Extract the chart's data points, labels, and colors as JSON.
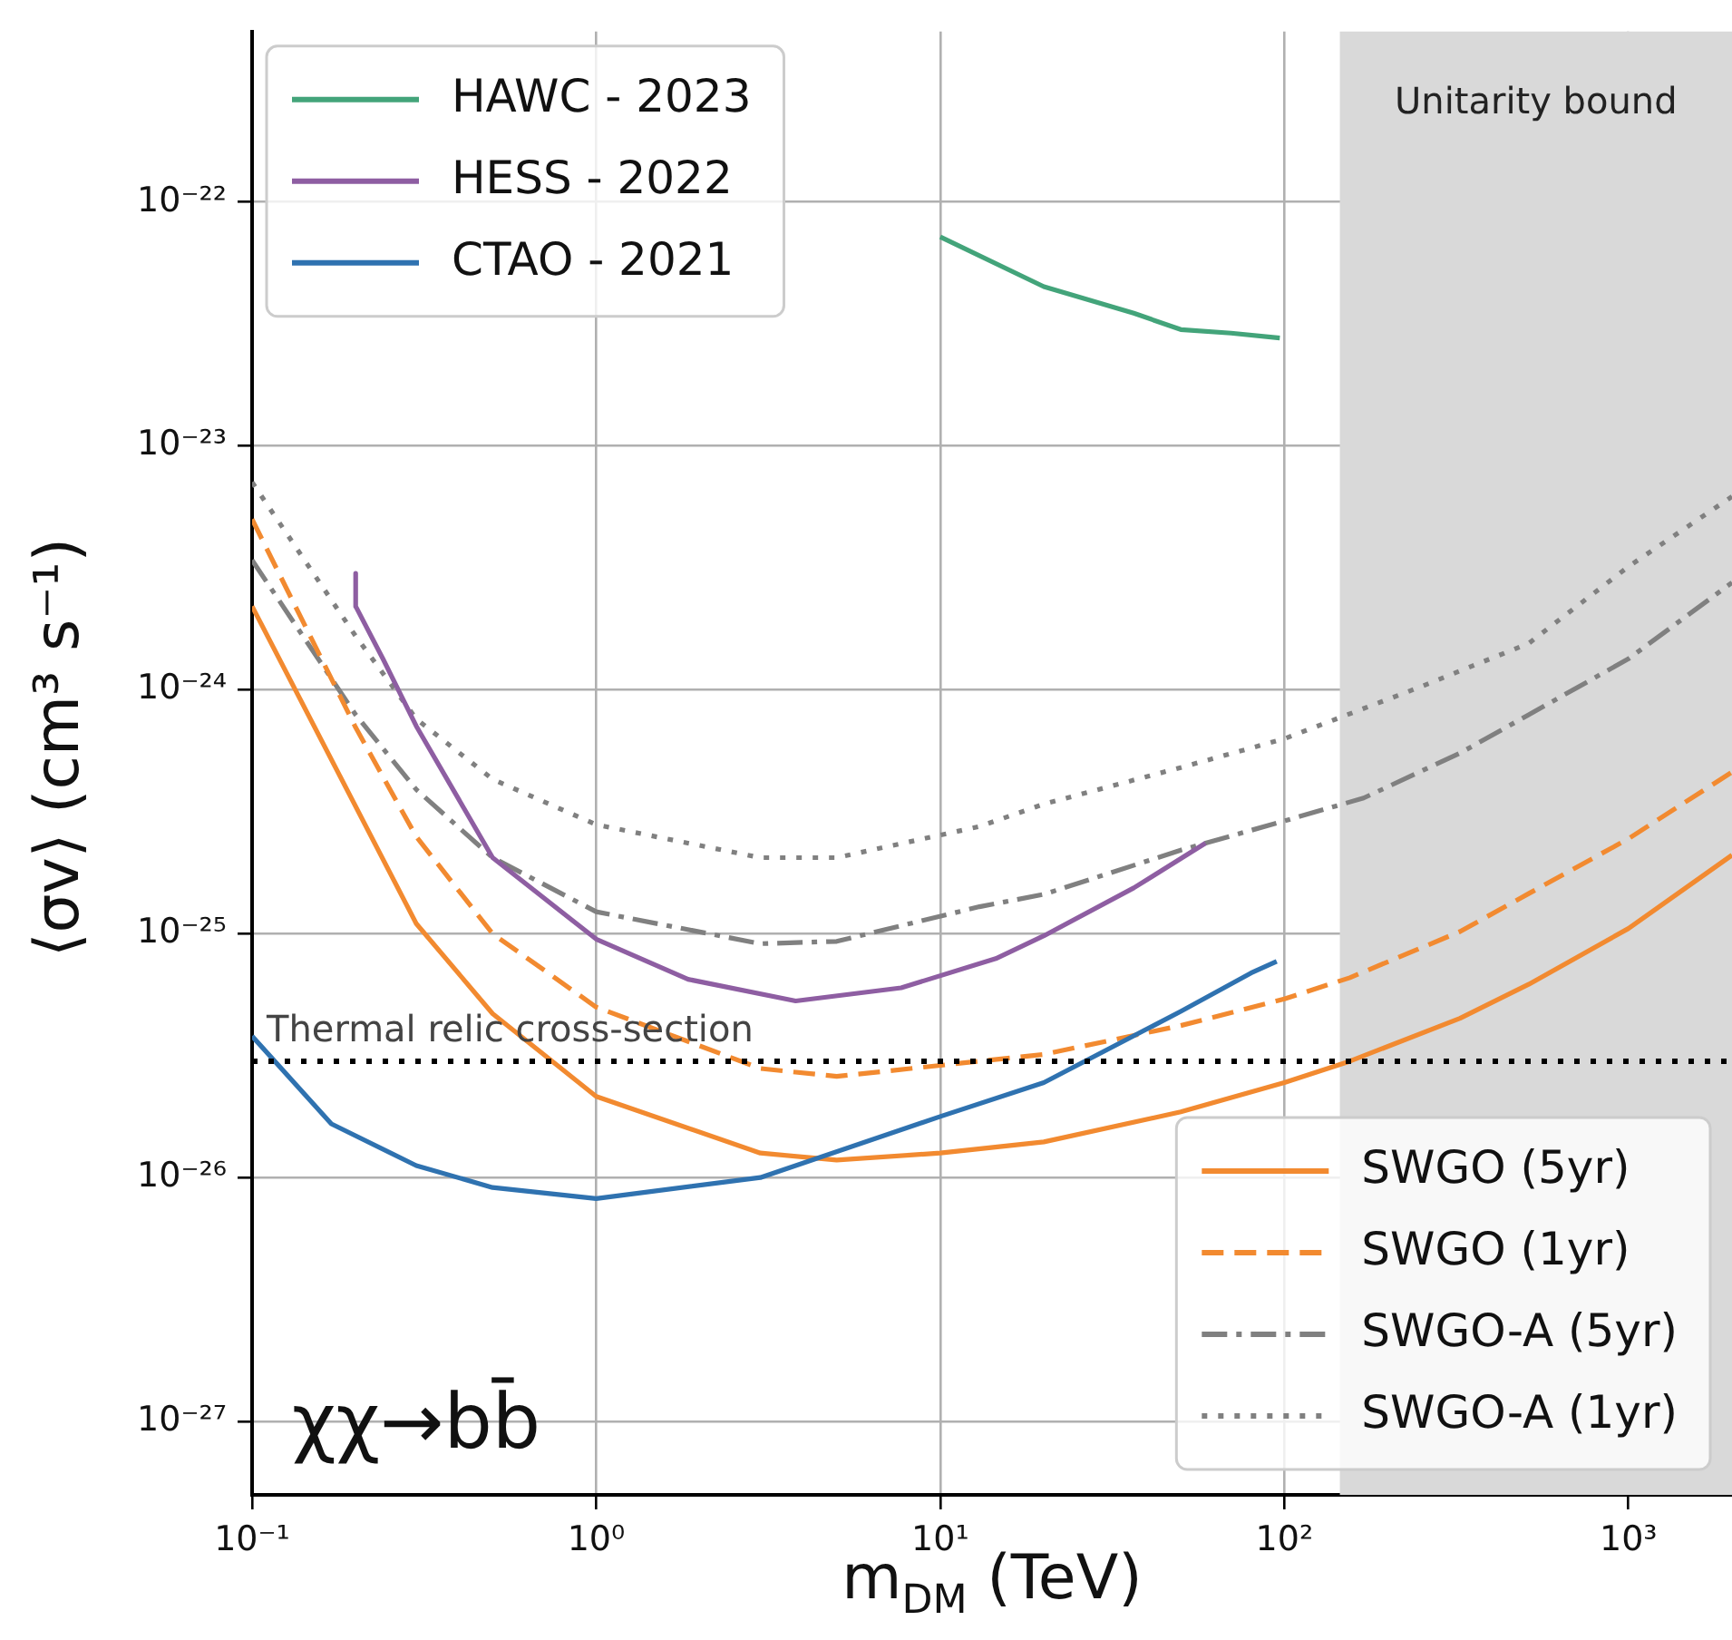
{
  "chart_data": {
    "type": "line",
    "xlabel": "m$_{DM}$ (TeV)",
    "ylabel": "⟨σv⟩ (cm³ s⁻¹)",
    "log": "xy",
    "grid": true,
    "legend": "top left",
    "xlim": [
      0.1,
      2000
    ],
    "xticks": [
      {
        "value": 0.1,
        "label": "10⁻¹"
      },
      {
        "value": 1,
        "label": "10⁰"
      },
      {
        "value": 10,
        "label": "10¹"
      },
      {
        "value": 100,
        "label": "10²"
      },
      {
        "value": 1000,
        "label": "10³"
      }
    ],
    "ylim": [
      5e-28,
      5e-22
    ],
    "yticks": [
      {
        "value": 1e-27,
        "label": "10⁻²⁷"
      },
      {
        "value": 1e-26,
        "label": "10⁻²⁶"
      },
      {
        "value": 1e-25,
        "label": "10⁻²⁵"
      },
      {
        "value": 1e-24,
        "label": "10⁻²⁴"
      },
      {
        "value": 1e-23,
        "label": "10⁻²³"
      },
      {
        "value": 1e-22,
        "label": "10⁻²²"
      }
    ],
    "series": [
      {
        "name": "HAWC - 2023",
        "color": "#43a47a",
        "line_style": "solid",
        "x": [
          10,
          20,
          36.5,
          50,
          70,
          97
        ],
        "values": [
          7.2e-23,
          4.5e-23,
          3.5e-23,
          3e-23,
          2.9e-23,
          2.77e-23
        ]
      },
      {
        "name": "HESS - 2022",
        "color": "#8e5ea2",
        "line_style": "solid",
        "x": [
          0.2,
          0.2,
          0.24,
          0.3,
          0.5,
          1,
          1.85,
          3.8,
          7.7,
          14.5,
          20,
          36.5,
          59
        ],
        "values": [
          3e-24,
          2.2e-24,
          1.34e-24,
          7.1e-25,
          2.05e-25,
          9.5e-26,
          6.5e-26,
          5.3e-26,
          6e-26,
          7.9e-26,
          9.8e-26,
          1.54e-25,
          2.35e-25
        ]
      },
      {
        "name": "CTAO - 2021",
        "color": "#2f72b0",
        "line_style": "solid",
        "x": [
          0.1,
          0.17,
          0.3,
          0.5,
          1,
          3,
          10,
          20,
          50,
          80,
          95
        ],
        "values": [
          3.8e-26,
          1.66e-26,
          1.12e-26,
          9.1e-27,
          8.2e-27,
          1e-26,
          1.78e-26,
          2.45e-26,
          4.8e-26,
          6.9e-26,
          7.7e-26
        ]
      },
      {
        "name": "SWGO (5yr)",
        "color": "#f28a30",
        "line_style": "solid",
        "x": [
          0.1,
          0.3,
          0.5,
          1,
          3,
          5,
          10,
          20,
          50,
          100,
          155,
          324,
          513,
          1000,
          2000
        ],
        "values": [
          2.2e-24,
          1.1e-25,
          4.7e-26,
          2.15e-26,
          1.26e-26,
          1.18e-26,
          1.26e-26,
          1.4e-26,
          1.86e-26,
          2.45e-26,
          3e-26,
          4.5e-26,
          6.2e-26,
          1.05e-25,
          2.1e-25
        ]
      },
      {
        "name": "SWGO (1yr)",
        "color": "#f28a30",
        "line_style": "dashed",
        "x": [
          0.1,
          0.2,
          0.3,
          0.5,
          1,
          3,
          5,
          13,
          20,
          50,
          100,
          155,
          324,
          513,
          1000,
          2000
        ],
        "values": [
          5e-24,
          7e-25,
          2.5e-25,
          1e-25,
          5e-26,
          2.8e-26,
          2.6e-26,
          3e-26,
          3.2e-26,
          4.2e-26,
          5.4e-26,
          6.6e-26,
          1.02e-25,
          1.46e-25,
          2.45e-25,
          4.6e-25
        ]
      },
      {
        "name": "SWGO-A (5yr)",
        "color": "#808080",
        "line_style": "dashdot",
        "x": [
          0.1,
          0.2,
          0.3,
          0.5,
          1,
          3,
          5,
          13,
          20,
          50,
          100,
          170,
          324,
          513,
          1000,
          2000
        ],
        "values": [
          3.4e-24,
          7.9e-25,
          3.9e-25,
          2.05e-25,
          1.23e-25,
          9.1e-26,
          9.3e-26,
          1.29e-25,
          1.45e-25,
          2.2e-25,
          2.9e-25,
          3.6e-25,
          5.5e-25,
          7.9e-25,
          1.34e-24,
          2.75e-24
        ]
      },
      {
        "name": "SWGO-A (1yr)",
        "color": "#808080",
        "line_style": "dotted",
        "x": [
          0.1,
          0.2,
          0.3,
          0.5,
          1,
          3,
          5,
          13,
          20,
          50,
          100,
          245,
          513,
          1000,
          2000
        ],
        "values": [
          7.1e-24,
          1.66e-24,
          7.6e-25,
          4.3e-25,
          2.8e-25,
          2.05e-25,
          2.05e-25,
          2.75e-25,
          3.4e-25,
          4.8e-25,
          6.3e-25,
          1.02e-24,
          1.55e-24,
          3.2e-24,
          6.2e-24
        ]
      }
    ],
    "ref_lines": [
      {
        "axis": "y",
        "value": 3e-26,
        "label": "Thermal relic cross-section",
        "color": "#000000",
        "line_style": "dotted"
      }
    ],
    "bands": [
      {
        "axis": "x",
        "from": 145,
        "to": 2000,
        "label": "Unitarity bound",
        "color": "#d9d9d9"
      }
    ],
    "annotations": [
      "χχ→bb̄"
    ]
  }
}
